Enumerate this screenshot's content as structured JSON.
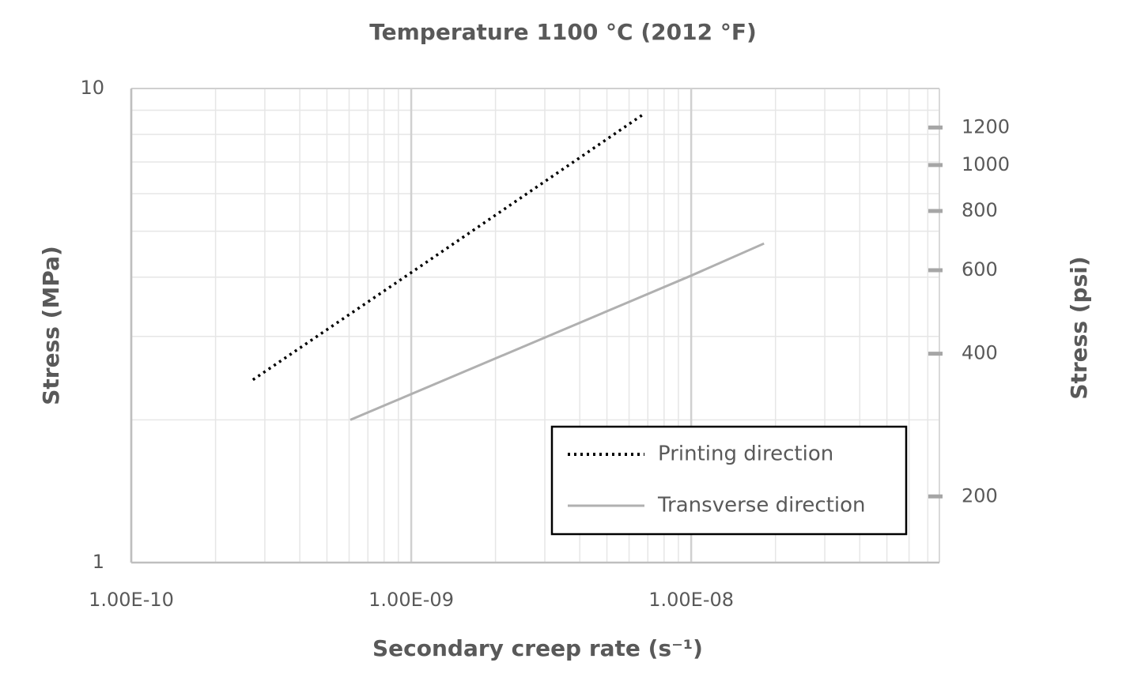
{
  "chart_data": {
    "type": "line",
    "title": "Temperature 1100 °C (2012 °F)",
    "x_label": "Secondary creep rate (s⁻¹)",
    "y_label": "Stress (MPa)",
    "y2_label": "Stress (psi)",
    "log_x": true,
    "log_y": true,
    "grid": true,
    "minor_grid": true,
    "xlim": [
      1e-10,
      7.7e-08
    ],
    "xticks": [
      {
        "value": 1e-10,
        "label": "1.00E-10"
      },
      {
        "value": 1e-09,
        "label": "1.00E-09"
      },
      {
        "value": 1e-08,
        "label": "1.00E-08"
      }
    ],
    "ylim": [
      1,
      10
    ],
    "yticks": [
      1,
      10
    ],
    "y2lim": [
      145.04,
      1450.4
    ],
    "y2ticks": [
      200,
      400,
      600,
      800,
      1000,
      1200
    ],
    "legend": "lower right",
    "series": [
      {
        "name": "Printing direction",
        "color": "#000000",
        "dash": "dotted",
        "x": [
          2.72e-10,
          1e-09,
          6.8e-09
        ],
        "values": [
          2.43,
          4.09,
          8.85
        ]
      },
      {
        "name": "Transverse direction",
        "color": "#b0b0b0",
        "dash": "solid",
        "x": [
          6.06e-10,
          1e-08,
          1.82e-08
        ],
        "values": [
          2.0,
          4.03,
          4.71
        ]
      }
    ]
  }
}
